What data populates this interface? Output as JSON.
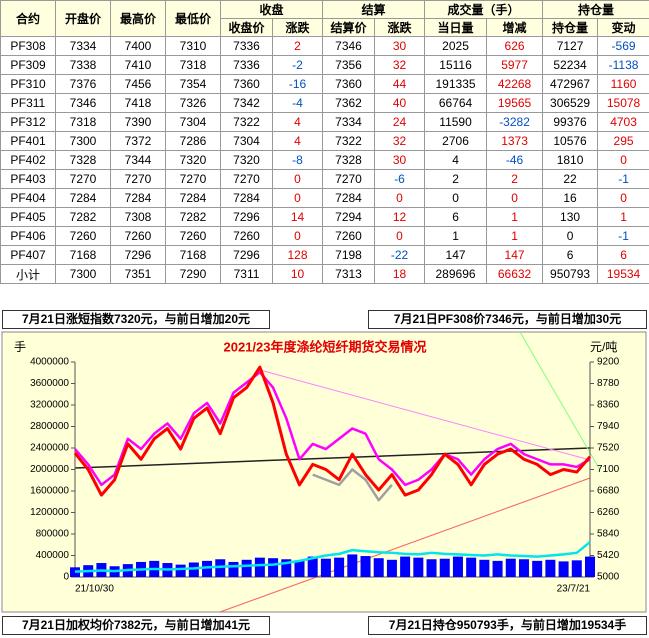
{
  "table": {
    "header1": [
      "合约",
      "开盘价",
      "最高价",
      "最低价",
      "收盘",
      "结算",
      "成交量（手）",
      "持仓量"
    ],
    "header2": [
      "收盘价",
      "涨跌",
      "结算价",
      "涨跌",
      "当日量",
      "增减",
      "持仓量",
      "变动"
    ],
    "rows": [
      [
        "PF308",
        "7334",
        "7400",
        "7310",
        "7336",
        "2",
        "7346",
        "30",
        "2025",
        "626",
        "7127",
        "-569"
      ],
      [
        "PF309",
        "7338",
        "7410",
        "7318",
        "7336",
        "-2",
        "7356",
        "32",
        "15116",
        "5977",
        "52234",
        "-1138"
      ],
      [
        "PF310",
        "7376",
        "7456",
        "7354",
        "7360",
        "-16",
        "7360",
        "44",
        "191335",
        "42268",
        "472967",
        "1160"
      ],
      [
        "PF311",
        "7346",
        "7418",
        "7326",
        "7342",
        "-4",
        "7362",
        "40",
        "66764",
        "19565",
        "306529",
        "15078"
      ],
      [
        "PF312",
        "7318",
        "7390",
        "7304",
        "7322",
        "4",
        "7334",
        "24",
        "11590",
        "-3282",
        "99376",
        "4703"
      ],
      [
        "PF401",
        "7300",
        "7372",
        "7286",
        "7304",
        "4",
        "7322",
        "32",
        "2706",
        "1373",
        "10576",
        "295"
      ],
      [
        "PF402",
        "7328",
        "7344",
        "7320",
        "7320",
        "-8",
        "7328",
        "30",
        "4",
        "-46",
        "1810",
        "0"
      ],
      [
        "PF403",
        "7270",
        "7270",
        "7270",
        "7270",
        "0",
        "7270",
        "-6",
        "2",
        "2",
        "22",
        "-1"
      ],
      [
        "PF404",
        "7284",
        "7284",
        "7284",
        "7284",
        "0",
        "7284",
        "0",
        "0",
        "0",
        "16",
        "0"
      ],
      [
        "PF405",
        "7282",
        "7308",
        "7282",
        "7296",
        "14",
        "7294",
        "12",
        "6",
        "1",
        "130",
        "1"
      ],
      [
        "PF406",
        "7260",
        "7260",
        "7260",
        "7260",
        "0",
        "7260",
        "0",
        "1",
        "1",
        "0",
        "-1"
      ],
      [
        "PF407",
        "7168",
        "7296",
        "7168",
        "7296",
        "128",
        "7198",
        "-22",
        "147",
        "147",
        "6",
        "6"
      ],
      [
        "小计",
        "7300",
        "7351",
        "7290",
        "7311",
        "10",
        "7313",
        "18",
        "289696",
        "66632",
        "950793",
        "19534"
      ]
    ]
  },
  "notes": {
    "top_left": "7月21日涨短指数7320元，与前日增加20元",
    "top_right": "7月21日PF308价7346元，与前日增加30元",
    "bottom_left": "7月21日加权均价7382元，与前日增加41元",
    "bottom_right": "7月21日持仓950793手，与前日增加19534手"
  },
  "chart_data": {
    "type": "line",
    "title": "2021/23年度涤纶短纤期货交易情况",
    "y_label": "手",
    "y2_label": "元/吨",
    "categories": [
      "21/10/30",
      null,
      null,
      null,
      null,
      null,
      null,
      null,
      null,
      null,
      null,
      null,
      null,
      null,
      null,
      null,
      null,
      null,
      null,
      null,
      null,
      null,
      null,
      null,
      null,
      null,
      null,
      null,
      null,
      null,
      null,
      null,
      null,
      null,
      null,
      null,
      null,
      null,
      null,
      "23/7/21"
    ],
    "ylim": [
      0,
      4000000
    ],
    "yticks": [
      0,
      400000,
      800000,
      1200000,
      1600000,
      2000000,
      2400000,
      2800000,
      3200000,
      3600000,
      4000000
    ],
    "y2lim": [
      5000,
      9200
    ],
    "y2ticks": [
      5000,
      5420,
      5840,
      6260,
      6680,
      7100,
      7520,
      7940,
      8360,
      8780,
      9200
    ],
    "series": [
      {
        "type": "bar",
        "color": "#0000ff",
        "values": [
          180000,
          220000,
          260000,
          200000,
          240000,
          280000,
          300000,
          260000,
          230000,
          270000,
          300000,
          330000,
          280000,
          320000,
          360000,
          350000,
          330000,
          310000,
          380000,
          340000,
          360000,
          420000,
          390000,
          350000,
          320000,
          380000,
          360000,
          330000,
          340000,
          380000,
          360000,
          320000,
          300000,
          340000,
          330000,
          300000,
          320000,
          290000,
          310000,
          380000
        ]
      },
      {
        "type": "line",
        "color": "#00e5ee",
        "values": [
          100000,
          110000,
          120000,
          110000,
          130000,
          140000,
          150000,
          140000,
          150000,
          160000,
          180000,
          190000,
          200000,
          210000,
          220000,
          230000,
          260000,
          300000,
          350000,
          400000,
          430000,
          500000,
          480000,
          460000,
          450000,
          430000,
          420000,
          450000,
          430000,
          420000,
          410000,
          400000,
          420000,
          400000,
          390000,
          380000,
          400000,
          420000,
          450000,
          650000
        ]
      },
      {
        "type": "line",
        "color": "#a0a0a0",
        "axis": "y2",
        "values": [
          null,
          null,
          null,
          null,
          null,
          null,
          null,
          null,
          null,
          null,
          null,
          null,
          null,
          null,
          null,
          null,
          null,
          null,
          7000,
          6900,
          6800,
          7100,
          6900,
          6500,
          6800,
          null,
          null,
          null,
          null,
          null,
          null,
          null,
          null,
          null,
          null,
          null,
          null,
          null,
          null,
          null
        ]
      },
      {
        "type": "line",
        "color": "#ff00ff",
        "axis": "y2",
        "values": [
          7500,
          7200,
          6800,
          7000,
          7700,
          7500,
          7800,
          8000,
          7700,
          8200,
          8400,
          8000,
          8600,
          8800,
          9000,
          8700,
          8100,
          7300,
          7600,
          7500,
          7700,
          7900,
          7800,
          7300,
          7100,
          6800,
          6900,
          7100,
          7400,
          7300,
          7000,
          7300,
          7500,
          7600,
          7400,
          7300,
          7200,
          7200,
          7150,
          7300
        ]
      },
      {
        "type": "line",
        "color": "#ff0000",
        "axis": "y2",
        "values": [
          7420,
          7100,
          6600,
          6900,
          7600,
          7300,
          7700,
          7900,
          7500,
          8100,
          8300,
          7800,
          8500,
          8700,
          9100,
          8400,
          7400,
          6800,
          7200,
          7100,
          6900,
          7400,
          7000,
          6700,
          7000,
          6600,
          6700,
          7000,
          7400,
          7200,
          6800,
          7200,
          7400,
          7500,
          7300,
          7200,
          7000,
          7100,
          7050,
          7350
        ]
      }
    ]
  }
}
